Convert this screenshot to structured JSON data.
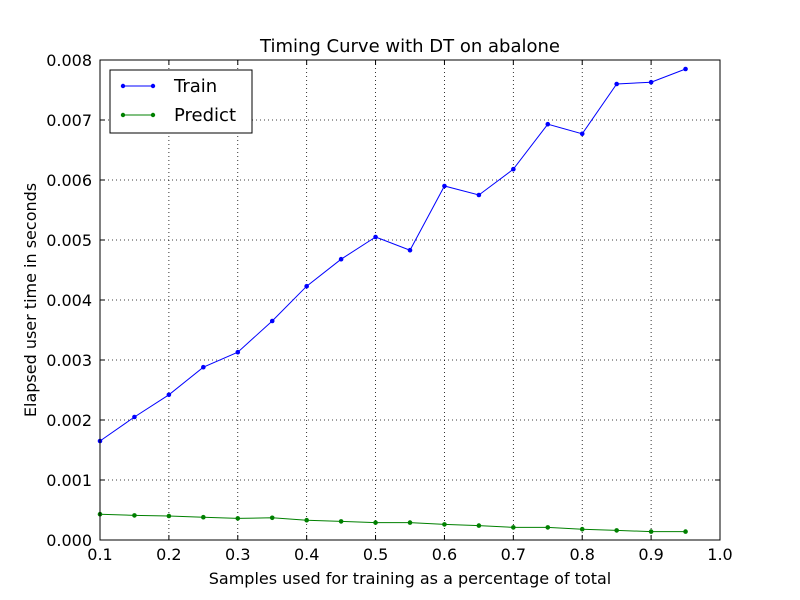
{
  "chart_data": {
    "type": "line",
    "title": "Timing Curve with DT on abalone",
    "xlabel": "Samples used for training as a percentage of total",
    "ylabel": "Elapsed user time in seconds",
    "xlim": [
      0.1,
      1.0
    ],
    "ylim": [
      0.0,
      0.008
    ],
    "xticks": [
      0.1,
      0.2,
      0.3,
      0.4,
      0.5,
      0.6,
      0.7,
      0.8,
      0.9,
      1.0
    ],
    "xtick_labels": [
      "0.1",
      "0.2",
      "0.3",
      "0.4",
      "0.5",
      "0.6",
      "0.7",
      "0.8",
      "0.9",
      "1.0"
    ],
    "yticks": [
      0,
      0.001,
      0.002,
      0.003,
      0.004,
      0.005,
      0.006,
      0.007,
      0.008
    ],
    "ytick_labels": [
      "0.000",
      "0.001",
      "0.002",
      "0.003",
      "0.004",
      "0.005",
      "0.006",
      "0.007",
      "0.008"
    ],
    "grid": true,
    "legend_position": "top-left",
    "x": [
      0.1,
      0.15,
      0.2,
      0.25,
      0.3,
      0.35,
      0.4,
      0.45,
      0.5,
      0.55,
      0.6,
      0.65,
      0.7,
      0.75,
      0.8,
      0.85,
      0.9,
      0.95
    ],
    "series": [
      {
        "name": "Train",
        "color": "#0000ff",
        "values": [
          0.00165,
          0.00205,
          0.00242,
          0.00288,
          0.00313,
          0.00365,
          0.00423,
          0.00468,
          0.00505,
          0.00483,
          0.0059,
          0.00575,
          0.00618,
          0.00693,
          0.00677,
          0.0076,
          0.00763,
          0.00785
        ]
      },
      {
        "name": "Predict",
        "color": "#008000",
        "values": [
          0.00043,
          0.00041,
          0.0004,
          0.00038,
          0.00036,
          0.00037,
          0.00033,
          0.00031,
          0.00029,
          0.00029,
          0.00026,
          0.00024,
          0.00021,
          0.00021,
          0.00018,
          0.00016,
          0.00014,
          0.00014
        ]
      }
    ]
  }
}
